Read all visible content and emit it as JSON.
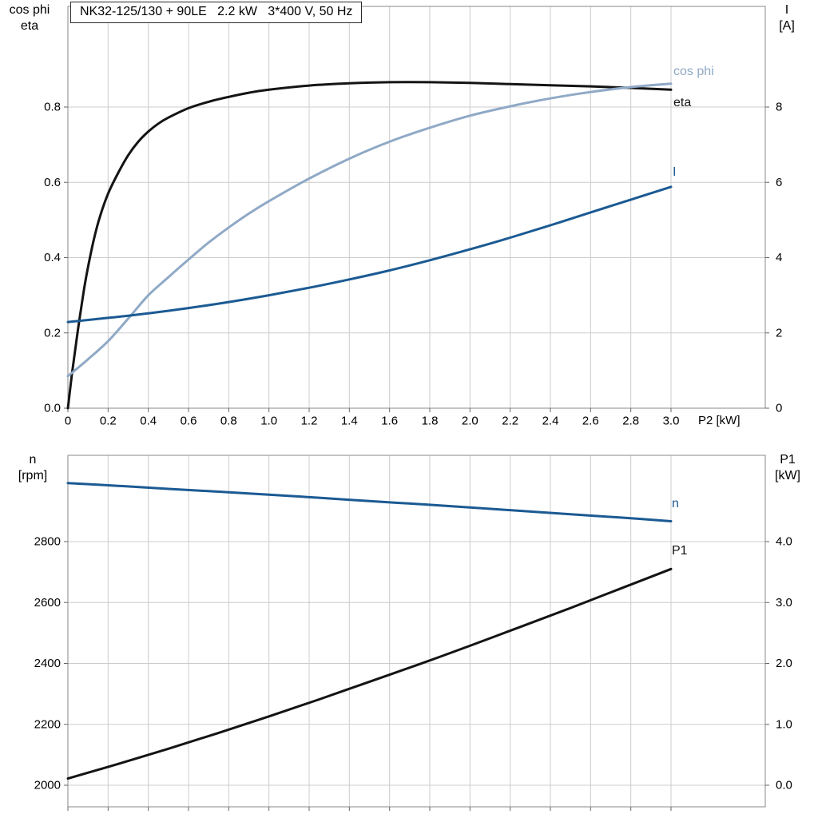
{
  "title": "NK32-125/130 + 90LE   2.2 kW   3*400 V, 50 Hz",
  "colors": {
    "black": "#141414",
    "blue": "#1b5a93",
    "lightblue": "#8fa9c6",
    "grid": "#cccccc",
    "frame": "#8a8a8a",
    "tick": "#666666",
    "text": "#000000"
  },
  "axis_labels": {
    "top_left_line1": "cos phi",
    "top_left_line2": "eta",
    "top_right_line1": "I",
    "top_right_line2": "[A]",
    "x_label": "P2 [kW]",
    "bottom_left_line1": "n",
    "bottom_left_line2": "[rpm]",
    "bottom_right_line1": "P1",
    "bottom_right_line2": "[kW]"
  },
  "curve_labels": {
    "cos_phi": "cos phi",
    "eta": "eta",
    "current": "I",
    "speed": "n",
    "power": "P1"
  },
  "chart_data": [
    {
      "type": "line",
      "title": "NK32-125/130 + 90LE   2.2 kW   3*400 V, 50 Hz",
      "xlabel": "P2 [kW]",
      "ylabel_left": "cos phi / eta",
      "ylabel_right": "I [A]",
      "xlim": [
        0,
        3.0
      ],
      "ylim_left": [
        0,
        1.07
      ],
      "ylim_right": [
        0,
        10.7
      ],
      "grid": true,
      "x_ticks": {
        "values": [
          0,
          0.2,
          0.4,
          0.6,
          0.8,
          1.0,
          1.2,
          1.4,
          1.6,
          1.8,
          2.0,
          2.2,
          2.4,
          2.6,
          2.8,
          3.0
        ],
        "labels": [
          "0",
          "0.2",
          "0.4",
          "0.6",
          "0.8",
          "1.0",
          "1.2",
          "1.4",
          "1.6",
          "1.8",
          "2.0",
          "2.2",
          "2.4",
          "2.6",
          "2.8",
          "3.0"
        ]
      },
      "left_ticks": {
        "values": [
          0,
          0.2,
          0.4,
          0.6,
          0.8
        ],
        "labels": [
          "0.0",
          "0.2",
          "0.4",
          "0.6",
          "0.8"
        ]
      },
      "right_ticks": {
        "values": [
          0,
          2,
          4,
          6,
          8
        ],
        "labels": [
          "0",
          "2",
          "4",
          "6",
          "8"
        ]
      },
      "series": [
        {
          "name": "eta",
          "axis": "left",
          "color": "black",
          "x": [
            0,
            0.02,
            0.04,
            0.06,
            0.08,
            0.1,
            0.13,
            0.16,
            0.2,
            0.25,
            0.3,
            0.35,
            0.4,
            0.45,
            0.5,
            0.6,
            0.7,
            0.8,
            0.9,
            1.0,
            1.2,
            1.4,
            1.6,
            1.8,
            2.0,
            2.2,
            2.4,
            2.6,
            2.8,
            3.0
          ],
          "y": [
            0,
            0.09,
            0.17,
            0.245,
            0.315,
            0.375,
            0.45,
            0.51,
            0.57,
            0.625,
            0.672,
            0.708,
            0.735,
            0.756,
            0.772,
            0.797,
            0.814,
            0.827,
            0.838,
            0.846,
            0.857,
            0.863,
            0.866,
            0.866,
            0.864,
            0.861,
            0.858,
            0.855,
            0.851,
            0.846
          ]
        },
        {
          "name": "cos phi",
          "axis": "left",
          "color": "lightblue",
          "x": [
            0,
            0.1,
            0.2,
            0.3,
            0.4,
            0.5,
            0.6,
            0.7,
            0.8,
            0.9,
            1.0,
            1.2,
            1.4,
            1.6,
            1.8,
            2.0,
            2.2,
            2.4,
            2.6,
            2.8,
            3.0
          ],
          "y": [
            0.085,
            0.13,
            0.178,
            0.238,
            0.3,
            0.348,
            0.395,
            0.44,
            0.48,
            0.517,
            0.55,
            0.61,
            0.663,
            0.708,
            0.745,
            0.777,
            0.802,
            0.823,
            0.84,
            0.853,
            0.862
          ]
        },
        {
          "name": "I",
          "axis": "right",
          "color": "blue",
          "x": [
            0,
            0.2,
            0.4,
            0.6,
            0.8,
            1.0,
            1.2,
            1.4,
            1.6,
            1.8,
            2.0,
            2.2,
            2.4,
            2.6,
            2.8,
            3.0
          ],
          "y": [
            2.29,
            2.4,
            2.52,
            2.66,
            2.82,
            3.0,
            3.2,
            3.42,
            3.66,
            3.93,
            4.22,
            4.53,
            4.86,
            5.2,
            5.54,
            5.88
          ]
        }
      ]
    },
    {
      "type": "line",
      "title": "",
      "xlabel": "P2 [kW]",
      "ylabel_left": "n [rpm]",
      "ylabel_right": "P1 [kW]",
      "xlim": [
        0,
        3.0
      ],
      "ylim_left": [
        1930,
        3085
      ],
      "ylim_right": [
        -0.35,
        5.4
      ],
      "grid": true,
      "x_ticks": {
        "values": [
          0,
          0.2,
          0.4,
          0.6,
          0.8,
          1.0,
          1.2,
          1.4,
          1.6,
          1.8,
          2.0,
          2.2,
          2.4,
          2.6,
          2.8,
          3.0
        ],
        "labels": []
      },
      "left_ticks": {
        "values": [
          2000,
          2200,
          2400,
          2600,
          2800
        ],
        "labels": [
          "2000",
          "2200",
          "2400",
          "2600",
          "2800"
        ]
      },
      "right_ticks": {
        "values": [
          0,
          1,
          2,
          3,
          4
        ],
        "labels": [
          "0.0",
          "1.0",
          "2.0",
          "3.0",
          "4.0"
        ]
      },
      "series": [
        {
          "name": "n",
          "axis": "left",
          "color": "blue",
          "x": [
            0,
            0.25,
            0.5,
            0.75,
            1.0,
            1.25,
            1.5,
            1.75,
            2.0,
            2.25,
            2.5,
            2.75,
            3.0
          ],
          "y": [
            2992,
            2983,
            2973,
            2964,
            2954,
            2944,
            2933,
            2923,
            2912,
            2901,
            2890,
            2879,
            2867
          ]
        },
        {
          "name": "P1",
          "axis": "right",
          "color": "black",
          "x": [
            0,
            0.25,
            0.5,
            0.75,
            1.0,
            1.25,
            1.5,
            1.75,
            2.0,
            2.25,
            2.5,
            2.75,
            3.0
          ],
          "y": [
            0.11,
            0.35,
            0.6,
            0.86,
            1.13,
            1.41,
            1.7,
            1.99,
            2.29,
            2.6,
            2.91,
            3.23,
            3.55
          ]
        }
      ]
    }
  ]
}
